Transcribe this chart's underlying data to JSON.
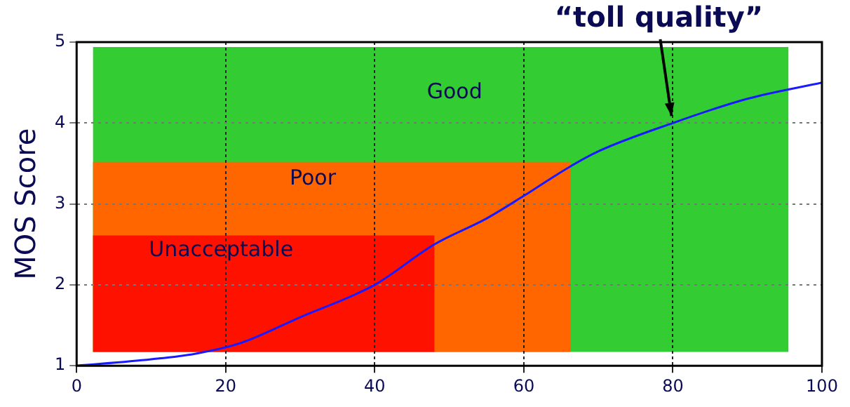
{
  "chart_data": {
    "type": "line",
    "ylabel": "MOS Score",
    "xlim": [
      0,
      100
    ],
    "xticks": [
      0,
      20,
      40,
      60,
      80,
      100
    ],
    "ylim": [
      1,
      5
    ],
    "yticks": [
      1,
      2,
      3,
      4,
      5
    ],
    "grid": true,
    "legend": false,
    "marker": "none",
    "line_style": "solid",
    "series": [
      {
        "color": "#1a1aff",
        "x": [
          0,
          10,
          16,
          22,
          30,
          40,
          48,
          55,
          60,
          66,
          70,
          80,
          90,
          100
        ],
        "values": [
          1,
          1.08,
          1.15,
          1.28,
          1.6,
          2.0,
          2.5,
          2.82,
          3.1,
          3.45,
          3.65,
          4.0,
          4.3,
          4.5
        ]
      }
    ],
    "bands": [
      {
        "axis": "y",
        "from": 1.17,
        "to": 4.94,
        "label": "Good",
        "color": "#33cc33"
      },
      {
        "axis": "y",
        "from": 1.17,
        "to": 3.52,
        "label": "Poor",
        "color": "#ff6600"
      },
      {
        "axis": "y",
        "from": 1.17,
        "to": 2.61,
        "label": "Unacceptable",
        "color": "#ff1100"
      }
    ],
    "annotations": [
      {
        "text": "“toll quality”",
        "x": 80,
        "y": 4
      }
    ]
  }
}
